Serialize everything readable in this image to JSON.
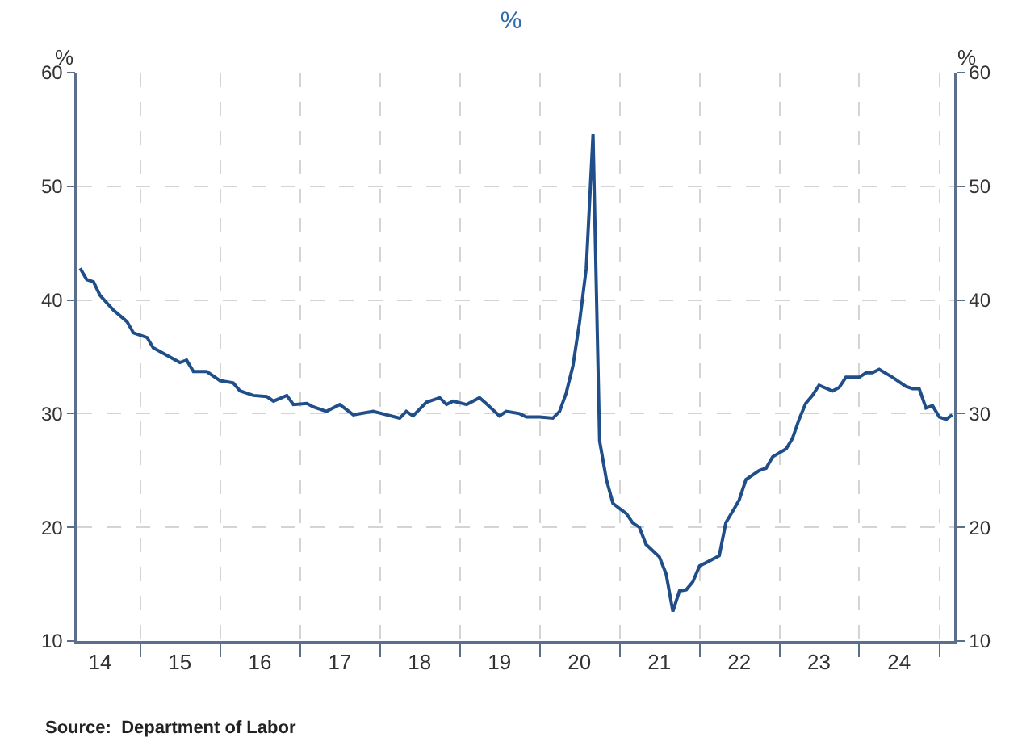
{
  "chart_data": {
    "type": "line",
    "title": "%",
    "ylabel": "%",
    "y2label": "%",
    "annotations": [
      "Source:  Department of Labor"
    ],
    "x": [
      "2014-04",
      "2014-05",
      "2014-06",
      "2014-07",
      "2014-09",
      "2014-11",
      "2014-12",
      "2015-02",
      "2015-03",
      "2015-07",
      "2015-08",
      "2015-09",
      "2015-11",
      "2016-01",
      "2016-03",
      "2016-04",
      "2016-06",
      "2016-08",
      "2016-09",
      "2016-11",
      "2016-12",
      "2017-02",
      "2017-03",
      "2017-05",
      "2017-07",
      "2017-09",
      "2017-12",
      "2018-04",
      "2018-05",
      "2018-06",
      "2018-08",
      "2018-10",
      "2018-11",
      "2018-12",
      "2019-02",
      "2019-04",
      "2019-05",
      "2019-07",
      "2019-08",
      "2019-10",
      "2019-11",
      "2020-01",
      "2020-03",
      "2020-04",
      "2020-05",
      "2020-06",
      "2020-07",
      "2020-08",
      "2020-09",
      "2020-10",
      "2020-11",
      "2020-12",
      "2021-02",
      "2021-03",
      "2021-04",
      "2021-05",
      "2021-07",
      "2021-08",
      "2021-09",
      "2021-10",
      "2021-11",
      "2021-12",
      "2022-01",
      "2022-02",
      "2022-04",
      "2022-05",
      "2022-06",
      "2022-07",
      "2022-08",
      "2022-10",
      "2022-11",
      "2022-12",
      "2023-02",
      "2023-03",
      "2023-04",
      "2023-05",
      "2023-06",
      "2023-07",
      "2023-09",
      "2023-10",
      "2023-11",
      "2024-01",
      "2024-02",
      "2024-03",
      "2024-04",
      "2024-06",
      "2024-08",
      "2024-09",
      "2024-10",
      "2024-11",
      "2024-12",
      "2025-01",
      "2025-02",
      "2025-03"
    ],
    "series": [
      {
        "color": "#1f4e89",
        "values": [
          42.8,
          41.8,
          41.6,
          40.4,
          39.1,
          38.1,
          37.1,
          36.7,
          35.8,
          34.5,
          34.7,
          33.7,
          33.7,
          32.9,
          32.7,
          32.0,
          31.6,
          31.5,
          31.1,
          31.6,
          30.8,
          30.9,
          30.6,
          30.2,
          30.8,
          29.9,
          30.2,
          29.6,
          30.2,
          29.8,
          31.0,
          31.4,
          30.8,
          31.1,
          30.8,
          31.4,
          30.9,
          29.8,
          30.2,
          30.0,
          29.7,
          29.7,
          29.6,
          30.2,
          31.8,
          34.2,
          38.0,
          42.8,
          54.6,
          27.6,
          24.2,
          22.1,
          21.2,
          20.4,
          20.0,
          18.5,
          17.4,
          15.9,
          12.6,
          14.4,
          14.5,
          15.2,
          16.6,
          16.9,
          17.5,
          20.4,
          21.4,
          22.4,
          24.2,
          25.0,
          25.2,
          26.2,
          26.9,
          27.8,
          29.5,
          30.9,
          31.6,
          32.5,
          32.0,
          32.3,
          33.2,
          33.2,
          33.6,
          33.6,
          33.9,
          33.2,
          32.4,
          32.2,
          32.2,
          30.5,
          30.7,
          29.7,
          29.5,
          29.9
        ]
      }
    ],
    "xlim": [
      "2014-03-20",
      "2025-03-10"
    ],
    "xticks": [
      {
        "value": "2014-07-01",
        "label": "14"
      },
      {
        "value": "2015-01-01",
        "label": null
      },
      {
        "value": "2015-07-01",
        "label": "15"
      },
      {
        "value": "2016-01-01",
        "label": null
      },
      {
        "value": "2016-07-01",
        "label": "16"
      },
      {
        "value": "2017-01-01",
        "label": null
      },
      {
        "value": "2017-07-01",
        "label": "17"
      },
      {
        "value": "2018-01-01",
        "label": null
      },
      {
        "value": "2018-07-01",
        "label": "18"
      },
      {
        "value": "2019-01-01",
        "label": null
      },
      {
        "value": "2019-07-01",
        "label": "19"
      },
      {
        "value": "2020-01-01",
        "label": null
      },
      {
        "value": "2020-07-01",
        "label": "20"
      },
      {
        "value": "2021-01-01",
        "label": null
      },
      {
        "value": "2021-07-01",
        "label": "21"
      },
      {
        "value": "2022-01-01",
        "label": null
      },
      {
        "value": "2022-07-01",
        "label": "22"
      },
      {
        "value": "2023-01-01",
        "label": null
      },
      {
        "value": "2023-07-01",
        "label": "23"
      },
      {
        "value": "2024-01-01",
        "label": null
      },
      {
        "value": "2024-07-01",
        "label": "24"
      },
      {
        "value": "2025-01-01",
        "label": null
      }
    ],
    "ylim": [
      10,
      60
    ],
    "yticks": [
      10,
      20,
      30,
      40,
      50,
      60
    ],
    "y2lim": [
      10,
      60
    ],
    "y2ticks": [
      10,
      20,
      30,
      40,
      50,
      60
    ],
    "grid": true,
    "marker": "none",
    "line_style": "solid"
  }
}
